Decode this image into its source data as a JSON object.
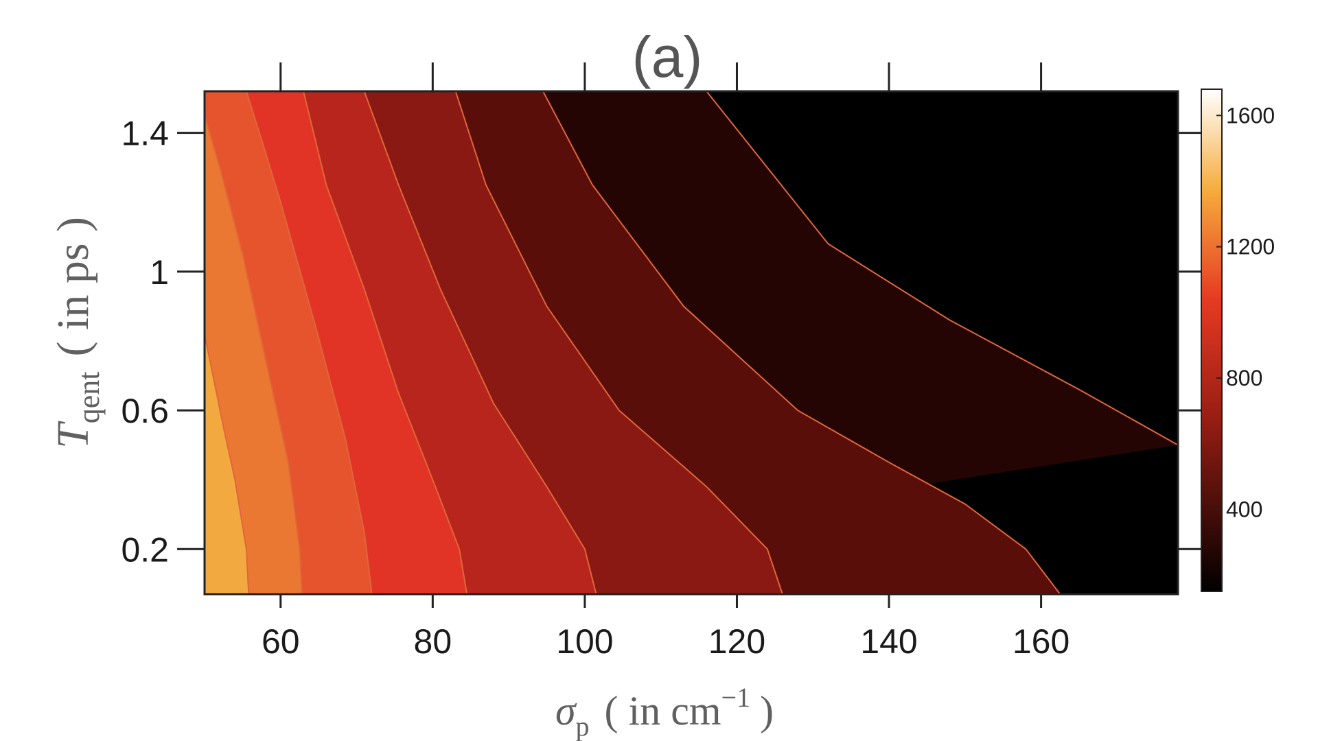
{
  "chart_data": {
    "type": "contour",
    "title": "(a)",
    "xlabel": {
      "symbol": "σ",
      "subscript": "p",
      "unit_prefix": "( in cm",
      "superscript": "−1",
      "unit_suffix": ")"
    },
    "ylabel": {
      "symbol": "T",
      "subscript": "qent",
      "unit": "( in ps )"
    },
    "xlim": [
      50,
      178
    ],
    "ylim": [
      0.07,
      1.52
    ],
    "xticks": [
      60,
      80,
      100,
      120,
      140,
      160
    ],
    "xtick_labels": [
      "60",
      "80",
      "100",
      "120",
      "140",
      "160"
    ],
    "yticks": [
      0.2,
      0.6,
      1.0,
      1.4
    ],
    "ytick_labels": [
      "0.2",
      "0.6",
      "1",
      "1.4"
    ],
    "colorbar": {
      "range": [
        150,
        1680
      ],
      "ticks": [
        400,
        800,
        1200,
        1600
      ],
      "tick_labels": [
        "400",
        "800",
        "1200",
        "1600"
      ],
      "colormap": "hot"
    },
    "contour_line_color": "#e0663a",
    "levels": [
      {
        "name": "band-1",
        "color": "#f2aa40",
        "boundary": [
          [
            55.8,
            0.07
          ],
          [
            55.5,
            0.2
          ],
          [
            54.0,
            0.4
          ],
          [
            52.5,
            0.55
          ],
          [
            50.0,
            0.82
          ]
        ]
      },
      {
        "name": "band-2",
        "color": "#eb7832",
        "boundary": [
          [
            62.8,
            0.07
          ],
          [
            62.5,
            0.2
          ],
          [
            61.0,
            0.45
          ],
          [
            58.0,
            0.75
          ],
          [
            55.0,
            1.05
          ],
          [
            52.0,
            1.3
          ],
          [
            50.0,
            1.45
          ]
        ]
      },
      {
        "name": "band-3",
        "color": "#e6542d",
        "boundary": [
          [
            72.0,
            0.07
          ],
          [
            71.0,
            0.25
          ],
          [
            68.5,
            0.52
          ],
          [
            64.5,
            0.85
          ],
          [
            60.0,
            1.2
          ],
          [
            57.5,
            1.38
          ],
          [
            55.5,
            1.52
          ]
        ]
      },
      {
        "name": "band-4",
        "color": "#e23426",
        "boundary": [
          [
            84.5,
            0.07
          ],
          [
            83.5,
            0.2
          ],
          [
            80.0,
            0.4
          ],
          [
            75.5,
            0.65
          ],
          [
            71.0,
            0.95
          ],
          [
            66.0,
            1.25
          ],
          [
            63.0,
            1.52
          ]
        ]
      },
      {
        "name": "band-5",
        "color": "#b8251c",
        "boundary": [
          [
            101.5,
            0.07
          ],
          [
            100.0,
            0.2
          ],
          [
            95.0,
            0.38
          ],
          [
            88.0,
            0.62
          ],
          [
            81.0,
            0.95
          ],
          [
            75.5,
            1.25
          ],
          [
            71.0,
            1.52
          ]
        ]
      },
      {
        "name": "band-6",
        "color": "#891912",
        "boundary": [
          [
            126.0,
            0.07
          ],
          [
            124.0,
            0.2
          ],
          [
            116.0,
            0.38
          ],
          [
            104.5,
            0.6
          ],
          [
            95.0,
            0.9
          ],
          [
            87.0,
            1.25
          ],
          [
            83.0,
            1.52
          ]
        ]
      },
      {
        "name": "band-7",
        "color": "#5a0e09",
        "boundary": [
          [
            162.5,
            0.07
          ],
          [
            158.0,
            0.2
          ],
          [
            150.0,
            0.33
          ],
          [
            140.0,
            0.45
          ],
          [
            128.0,
            0.6
          ],
          [
            113.0,
            0.9
          ],
          [
            101.0,
            1.25
          ],
          [
            94.5,
            1.52
          ]
        ]
      },
      {
        "name": "band-8",
        "color": "#250404",
        "boundary": [
          [
            178.0,
            0.5
          ],
          [
            165.0,
            0.66
          ],
          [
            148.0,
            0.86
          ],
          [
            132.0,
            1.08
          ],
          [
            124.0,
            1.3
          ],
          [
            116.0,
            1.52
          ]
        ]
      },
      {
        "name": "band-9",
        "color": "#000000",
        "boundary": []
      }
    ]
  }
}
